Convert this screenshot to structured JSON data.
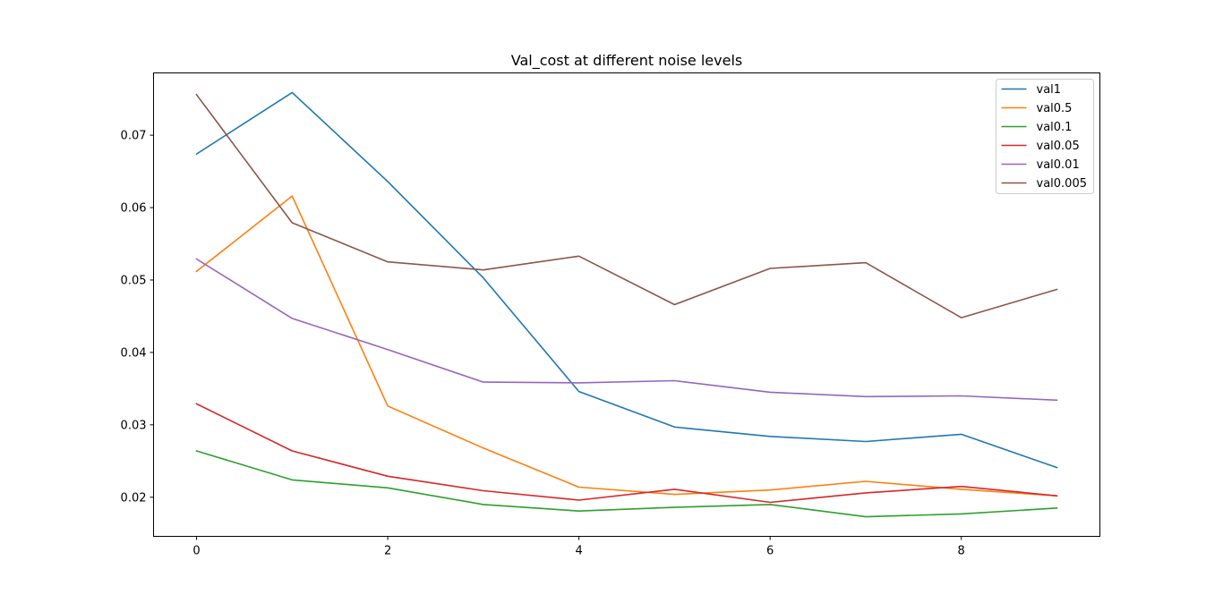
{
  "chart_data": {
    "type": "line",
    "title": "Val_cost at different noise levels",
    "xlabel": "",
    "ylabel": "",
    "x": [
      0,
      1,
      2,
      3,
      4,
      5,
      6,
      7,
      8,
      9
    ],
    "xlim": [
      -0.45,
      9.45
    ],
    "ylim": [
      0.0146,
      0.0786
    ],
    "x_ticks": [
      0,
      2,
      4,
      6,
      8
    ],
    "x_tick_labels": [
      "0",
      "2",
      "4",
      "6",
      "8"
    ],
    "y_ticks": [
      0.02,
      0.03,
      0.04,
      0.05,
      0.06,
      0.07
    ],
    "y_tick_labels": [
      "0.02",
      "0.03",
      "0.04",
      "0.05",
      "0.06",
      "0.07"
    ],
    "grid": false,
    "legend_position": "top-right",
    "series": [
      {
        "name": "val1",
        "color": "#1f77b4",
        "values": [
          0.0674,
          0.0759,
          0.0636,
          0.0503,
          0.0346,
          0.0297,
          0.0284,
          0.0277,
          0.0287,
          0.0241
        ]
      },
      {
        "name": "val0.5",
        "color": "#ff7f0e",
        "values": [
          0.0512,
          0.0616,
          0.0326,
          0.0268,
          0.0214,
          0.0204,
          0.021,
          0.0222,
          0.0211,
          0.0202
        ]
      },
      {
        "name": "val0.1",
        "color": "#2ca02c",
        "values": [
          0.0264,
          0.0224,
          0.0213,
          0.019,
          0.0181,
          0.0186,
          0.019,
          0.0173,
          0.0177,
          0.0185
        ]
      },
      {
        "name": "val0.05",
        "color": "#d62728",
        "values": [
          0.0329,
          0.0264,
          0.0229,
          0.0209,
          0.0196,
          0.0211,
          0.0193,
          0.0206,
          0.0215,
          0.0202
        ]
      },
      {
        "name": "val0.01",
        "color": "#9467bd",
        "values": [
          0.0529,
          0.0447,
          0.0404,
          0.0359,
          0.0358,
          0.0361,
          0.0345,
          0.0339,
          0.034,
          0.0334
        ]
      },
      {
        "name": "val0.005",
        "color": "#8c564b",
        "values": [
          0.0756,
          0.0579,
          0.0525,
          0.0514,
          0.0533,
          0.0466,
          0.0516,
          0.0524,
          0.0448,
          0.0487
        ]
      }
    ]
  }
}
